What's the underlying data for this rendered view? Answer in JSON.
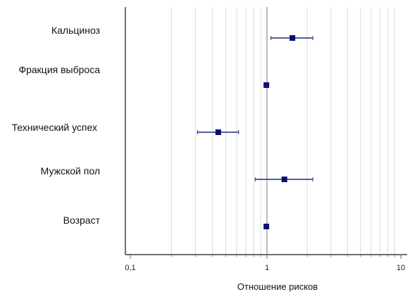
{
  "chart_data": {
    "type": "scatter",
    "subtype": "forest-plot",
    "title": "",
    "xlabel": "Отношение рисков",
    "ylabel": "",
    "x_scale": "log",
    "xlim": [
      0.1,
      10
    ],
    "grid": true,
    "reference_line": 1,
    "x_ticks": [
      {
        "value": 0.1,
        "label": "0,1"
      },
      {
        "value": 1,
        "label": "1"
      },
      {
        "value": 10,
        "label": "10"
      }
    ],
    "rows": [
      {
        "label": "Кальциноз",
        "estimate": 1.55,
        "ci_low": 1.07,
        "ci_high": 2.2
      },
      {
        "label": "Фракция выброса",
        "estimate": 0.99,
        "ci_low": null,
        "ci_high": null
      },
      {
        "label": "Технический успех",
        "estimate": 0.44,
        "ci_low": 0.31,
        "ci_high": 0.62
      },
      {
        "label": "Мужской пол",
        "estimate": 1.35,
        "ci_low": 0.82,
        "ci_high": 2.2
      },
      {
        "label": "Возраст",
        "estimate": 0.99,
        "ci_low": null,
        "ci_high": null
      }
    ],
    "colors": {
      "marker": "#0d0f6b",
      "ci_line": "#1f2a7a",
      "axis": "#6f6f6f",
      "grid": "#dddddd",
      "reference": "#8c8c8c"
    }
  }
}
